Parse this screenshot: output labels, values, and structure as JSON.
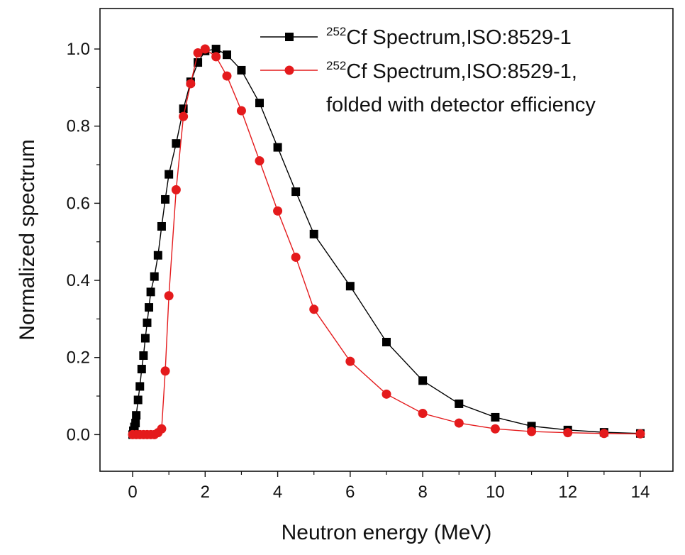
{
  "chart_data": {
    "type": "line",
    "xlabel": "Neutron energy (MeV)",
    "ylabel": "Normalized spectrum",
    "xlim": [
      -0.9,
      14.9
    ],
    "ylim": [
      -0.095,
      1.105
    ],
    "xticks": [
      0,
      2,
      4,
      6,
      8,
      10,
      12,
      14
    ],
    "yticks": [
      0.0,
      0.2,
      0.4,
      0.6,
      0.8,
      1.0
    ],
    "xtick_labels": [
      "0",
      "2",
      "4",
      "6",
      "8",
      "10",
      "12",
      "14"
    ],
    "ytick_labels": [
      "0.0",
      "0.2",
      "0.4",
      "0.6",
      "0.8",
      "1.0"
    ],
    "legend_position": "top-right",
    "series": [
      {
        "name": "Cf Spectrum,ISO:8529-1",
        "legend_sup": "252",
        "legend_line1": "Cf Spectrum,ISO:8529-1",
        "color": "#000000",
        "marker": "square",
        "x": [
          0.0,
          0.02,
          0.05,
          0.08,
          0.1,
          0.15,
          0.2,
          0.25,
          0.3,
          0.35,
          0.4,
          0.45,
          0.5,
          0.6,
          0.7,
          0.8,
          0.9,
          1.0,
          1.2,
          1.4,
          1.6,
          1.8,
          2.0,
          2.3,
          2.6,
          3.0,
          3.5,
          4.0,
          4.5,
          5.0,
          6.0,
          7.0,
          8.0,
          9.0,
          10.0,
          11.0,
          12.0,
          13.0,
          14.0
        ],
        "y": [
          0.0,
          0.01,
          0.02,
          0.03,
          0.05,
          0.09,
          0.125,
          0.17,
          0.205,
          0.25,
          0.29,
          0.33,
          0.37,
          0.41,
          0.465,
          0.54,
          0.61,
          0.675,
          0.755,
          0.845,
          0.915,
          0.965,
          0.995,
          1.0,
          0.985,
          0.945,
          0.86,
          0.745,
          0.63,
          0.52,
          0.385,
          0.24,
          0.14,
          0.08,
          0.045,
          0.022,
          0.012,
          0.006,
          0.003
        ]
      },
      {
        "name": "Cf Spectrum,ISO:8529-1, folded with detector efficiency",
        "legend_sup": "252",
        "legend_line1": "Cf Spectrum,ISO:8529-1,",
        "legend_line2": "folded with detector efficiency",
        "color": "#e41a1c",
        "marker": "circle",
        "x": [
          0.0,
          0.1,
          0.2,
          0.3,
          0.4,
          0.5,
          0.6,
          0.7,
          0.8,
          0.9,
          1.0,
          1.2,
          1.4,
          1.6,
          1.8,
          2.0,
          2.3,
          2.6,
          3.0,
          3.5,
          4.0,
          4.5,
          5.0,
          6.0,
          7.0,
          8.0,
          9.0,
          10.0,
          11.0,
          12.0,
          13.0,
          14.0
        ],
        "y": [
          0.0,
          0.0,
          0.0,
          0.0,
          0.0,
          0.0,
          0.0,
          0.005,
          0.015,
          0.165,
          0.36,
          0.635,
          0.825,
          0.91,
          0.99,
          1.0,
          0.98,
          0.93,
          0.84,
          0.71,
          0.58,
          0.46,
          0.325,
          0.19,
          0.105,
          0.055,
          0.03,
          0.015,
          0.008,
          0.005,
          0.003,
          0.002
        ]
      }
    ]
  }
}
